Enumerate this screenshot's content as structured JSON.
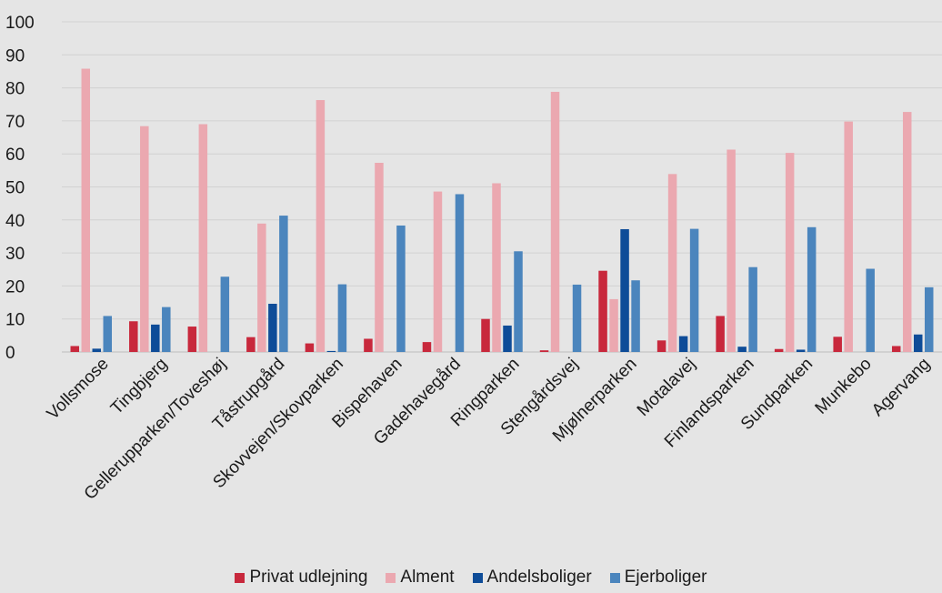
{
  "chart_data": {
    "type": "bar",
    "title": "",
    "xlabel": "",
    "ylabel": "",
    "ylim": [
      0,
      100
    ],
    "yticks": [
      0,
      10,
      20,
      30,
      40,
      50,
      60,
      70,
      80,
      90,
      100
    ],
    "grid": true,
    "legend_position": "bottom",
    "categories": [
      "Vollsmose",
      "Tingbjerg",
      "Gellerupparken/Toveshøj",
      "Tåstrupgård",
      "Skovvejen/Skovparken",
      "Bispehaven",
      "Gadehavegård",
      "Ringparken",
      "Stengårdsvej",
      "Mjølnerparken",
      "Motalavej",
      "Finlandsparken",
      "Sundparken",
      "Munkebo",
      "Agervang"
    ],
    "series": [
      {
        "name": "Privat udlejning",
        "color": "#c8283c",
        "values": [
          1.8,
          9.3,
          7.7,
          4.5,
          2.6,
          4.0,
          3.0,
          10.0,
          0.5,
          24.6,
          3.5,
          10.9,
          0.9,
          4.6,
          1.8
        ]
      },
      {
        "name": "Alment",
        "color": "#eba8b0",
        "values": [
          85.8,
          68.4,
          69.0,
          38.9,
          76.3,
          57.3,
          48.6,
          51.1,
          78.8,
          16.0,
          53.9,
          61.3,
          60.3,
          69.8,
          72.7
        ]
      },
      {
        "name": "Andelsboliger",
        "color": "#0e4c98",
        "values": [
          1.0,
          8.3,
          0,
          14.6,
          0.3,
          0,
          0,
          8.0,
          0,
          37.2,
          4.8,
          1.6,
          0.7,
          0,
          5.3
        ]
      },
      {
        "name": "Ejerboliger",
        "color": "#4b85bd",
        "values": [
          10.9,
          13.6,
          22.8,
          41.3,
          20.5,
          38.3,
          47.8,
          30.5,
          20.4,
          21.7,
          37.3,
          25.7,
          37.8,
          25.2,
          19.6
        ]
      }
    ]
  }
}
